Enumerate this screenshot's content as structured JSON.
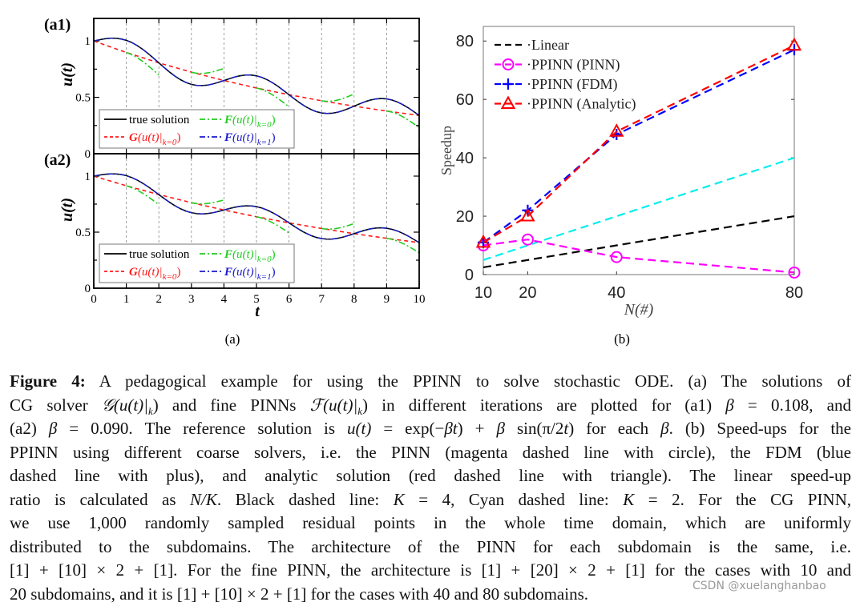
{
  "figure": {
    "panel_a_label": "(a)",
    "panel_b_label": "(b)",
    "watermark": "CSDN @xuelanghanbao"
  },
  "chart_data": [
    {
      "type": "line",
      "panel": "(a1)",
      "ylabel": "u(t)",
      "xlim": [
        0,
        10
      ],
      "ylim": [
        0,
        1.2
      ],
      "y_ticks": [
        "0",
        "0.5",
        "1"
      ],
      "beta": 0.108,
      "subdomain_boundaries": [
        1,
        2,
        3,
        4,
        5,
        6,
        7,
        8,
        9
      ],
      "legend": [
        "true solution",
        "G(u(t)|k=0)",
        "F(u(t)|k=0)",
        "F(u(t)|k=1)"
      ],
      "legend_placement": "bottom-left",
      "colors": {
        "true": "#000000",
        "G": "#ff1a1a",
        "F0": "#22cc22",
        "F1": "#1a1acc"
      }
    },
    {
      "type": "line",
      "panel": "(a2)",
      "xlabel": "t",
      "ylabel": "u(t)",
      "xlim": [
        0,
        10
      ],
      "ylim": [
        0,
        1.2
      ],
      "x_ticks": [
        "0",
        "1",
        "2",
        "3",
        "4",
        "5",
        "6",
        "7",
        "8",
        "9",
        "10"
      ],
      "y_ticks": [
        "0",
        "0.5",
        "1"
      ],
      "beta": 0.09,
      "subdomain_boundaries": [
        1,
        2,
        3,
        4,
        5,
        6,
        7,
        8,
        9
      ],
      "legend": [
        "true solution",
        "G(u(t)|k=0)",
        "F(u(t)|k=0)",
        "F(u(t)|k=1)"
      ],
      "legend_placement": "bottom-left",
      "colors": {
        "true": "#000000",
        "G": "#ff1a1a",
        "F0": "#22cc22",
        "F1": "#1a1acc"
      }
    },
    {
      "type": "line",
      "panel": "(b)",
      "xlabel": "N(#)",
      "ylabel": "Speedup",
      "x": [
        10,
        20,
        40,
        80
      ],
      "x_ticks": [
        "10",
        "20",
        "40",
        "80"
      ],
      "y_ticks": [
        "0",
        "20",
        "40",
        "60",
        "80"
      ],
      "xlim": [
        10,
        80
      ],
      "ylim": [
        0,
        85
      ],
      "legend_placement": "top-left",
      "series": [
        {
          "name": "Linear",
          "values": [
            2.5,
            5,
            10,
            20
          ],
          "color": "#000000",
          "marker": "none"
        },
        {
          "values": [
            5,
            10,
            20,
            40
          ],
          "color": "#00eeee",
          "marker": "none"
        },
        {
          "name": "PPINN (PINN)",
          "values": [
            10,
            12,
            6,
            0.7
          ],
          "color": "#ff00ff",
          "marker": "circle"
        },
        {
          "name": "PPINN (FDM)",
          "values": [
            11,
            22,
            48,
            77
          ],
          "color": "#0000ff",
          "marker": "plus"
        },
        {
          "name": "PPINN (Analytic)",
          "values": [
            11,
            20,
            49,
            78.5
          ],
          "color": "#ff0000",
          "marker": "triangle"
        }
      ]
    }
  ],
  "caption": {
    "lines": [
      [
        [
          "b",
          "Figure 4:"
        ],
        [
          "t",
          " A pedagogical example for using the PPINN to solve stochastic ODE. (a) The solutions of"
        ]
      ],
      [
        [
          "t",
          "CG solver "
        ],
        [
          "i",
          "𝒢(u(t)|"
        ],
        [
          "sub",
          "k"
        ],
        [
          "t",
          ") and fine PINNs "
        ],
        [
          "i",
          "ℱ(u(t)|"
        ],
        [
          "sub",
          "k"
        ],
        [
          "t",
          ") in different iterations are plotted for (a1) "
        ],
        [
          "i",
          "β"
        ],
        [
          "t",
          " = 0.108, and"
        ]
      ],
      [
        [
          "t",
          "(a2) "
        ],
        [
          "i",
          "β"
        ],
        [
          "t",
          " = 0.090.  The reference solution is "
        ],
        [
          "i",
          "u(t)"
        ],
        [
          "t",
          " = exp(−"
        ],
        [
          "i",
          "βt"
        ],
        [
          "t",
          ") + "
        ],
        [
          "i",
          "β"
        ],
        [
          "t",
          " sin("
        ],
        [
          "t",
          "π/2"
        ],
        [
          "i",
          "t"
        ],
        [
          "t",
          ") for each "
        ],
        [
          "i",
          "β"
        ],
        [
          "t",
          ". (b) Speed-ups for the"
        ]
      ],
      [
        [
          "t",
          "PPINN using different coarse solvers, i.e. the PINN (magenta dashed line with circle), the FDM (blue"
        ]
      ],
      [
        [
          "t",
          "dashed line with plus), and analytic solution (red dashed line with triangle).  The linear speed-up"
        ]
      ],
      [
        [
          "t",
          "ratio is calculated as "
        ],
        [
          "i",
          "N/K"
        ],
        [
          "t",
          ".  Black dashed line: "
        ],
        [
          "i",
          "K"
        ],
        [
          "t",
          " = 4, Cyan dashed line: "
        ],
        [
          "i",
          "K"
        ],
        [
          "t",
          " = 2.  For the CG PINN,"
        ]
      ],
      [
        [
          "t",
          "we use 1,000 randomly sampled residual points in the whole time domain, which are uniformly"
        ]
      ],
      [
        [
          "t",
          "distributed to the subdomains.  The architecture of the PINN for each subdomain is the same, i.e."
        ]
      ],
      [
        [
          "t",
          "[1] + [10] × 2 + [1]. For the fine PINN, the architecture is [1] + [20] × 2 + [1] for the cases with 10 and"
        ]
      ],
      [
        [
          "t",
          "20 subdomains, and it is [1] + [10] × 2 + [1] for the cases with 40 and 80 subdomains."
        ]
      ]
    ]
  }
}
